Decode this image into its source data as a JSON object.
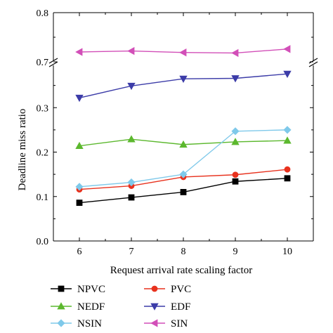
{
  "chart_data": {
    "type": "line",
    "xlabel": "Request arrival rate scaling factor",
    "ylabel": "Deadline miss ratio",
    "x": [
      6,
      7,
      8,
      9,
      10
    ],
    "x_ticks": [
      "6",
      "7",
      "8",
      "9",
      "10"
    ],
    "xlim": [
      5.5,
      10.5
    ],
    "y_axis_broken": true,
    "ylim_lower": [
      0.0,
      0.4
    ],
    "ylim_upper": [
      0.7,
      0.8
    ],
    "y_ticks_lower": [
      "0.0",
      "0.1",
      "0.2",
      "0.3"
    ],
    "y_ticks_upper": [
      "0.7",
      "0.8"
    ],
    "grid": false,
    "legend_position": "bottom",
    "series": [
      {
        "name": "NPVC",
        "values": [
          0.086,
          0.098,
          0.11,
          0.134,
          0.141
        ],
        "color": "#000000",
        "marker": "square"
      },
      {
        "name": "PVC",
        "values": [
          0.116,
          0.124,
          0.144,
          0.149,
          0.161
        ],
        "color": "#e8321e",
        "marker": "circle"
      },
      {
        "name": "NEDF",
        "values": [
          0.214,
          0.229,
          0.217,
          0.223,
          0.226
        ],
        "color": "#5cb82e",
        "marker": "triangle-up"
      },
      {
        "name": "EDF",
        "values": [
          0.322,
          0.349,
          0.365,
          0.366,
          0.376
        ],
        "color": "#3c3ca8",
        "marker": "triangle-down"
      },
      {
        "name": "NSIN",
        "values": [
          0.122,
          0.132,
          0.15,
          0.247,
          0.25
        ],
        "color": "#7fc9ea",
        "marker": "diamond"
      },
      {
        "name": "SIN",
        "values": [
          0.72,
          0.722,
          0.719,
          0.718,
          0.726
        ],
        "color": "#d24fb8",
        "marker": "triangle-left"
      }
    ]
  }
}
